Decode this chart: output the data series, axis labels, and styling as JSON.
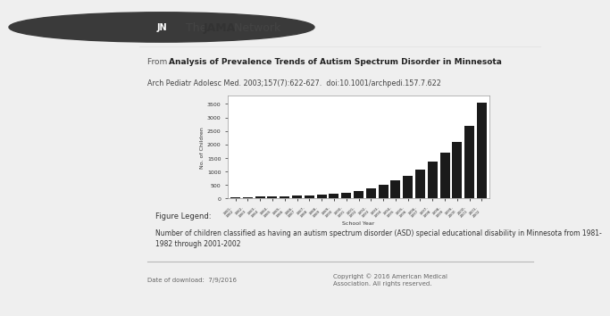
{
  "title_article_from": "From  ",
  "title_article_bold": "Analysis of Prevalence Trends of Autism Spectrum Disorder in Minnesota",
  "subtitle": "Arch Pediatr Adolesc Med. 2003;157(7):622-627.  doi:10.1001/archpedi.157.7.622",
  "ylabel": "No. of Children",
  "xlabel": "School Year",
  "bar_color": "#1a1a1a",
  "figure_legend_header": "Figure Legend:",
  "legend_text": "Number of children classified as having an autism spectrum disorder (ASD) special educational disability in Minnesota from 1981-\n1982 through 2001-2002",
  "footer_left": "Date of download:  7/9/2016",
  "footer_right": "Copyright © 2016 American Medical\nAssociation. All rights reserved.",
  "categories": [
    "1981-\n1982",
    "1982-\n1983",
    "1983-\n1984",
    "1984-\n1985",
    "1985-\n1986",
    "1986-\n1987",
    "1987-\n1988",
    "1988-\n1989",
    "1989-\n1990",
    "1990-\n1991",
    "1991-\n1992",
    "1992-\n1993",
    "1993-\n1994",
    "1994-\n1995",
    "1995-\n1996",
    "1996-\n1997",
    "1997-\n1998",
    "1998-\n1999",
    "1999-\n2000",
    "2000-\n2001",
    "2001-\n2002"
  ],
  "values": [
    50,
    55,
    62,
    72,
    82,
    97,
    112,
    135,
    168,
    215,
    275,
    375,
    505,
    665,
    825,
    1055,
    1355,
    1705,
    2105,
    2700,
    3550
  ],
  "ylim": [
    0,
    3800
  ],
  "yticks": [
    0,
    500,
    1000,
    1500,
    2000,
    2500,
    3000,
    3500
  ],
  "header_bg": "#e8e8e8",
  "page_bg": "#f0f0f0",
  "jama_circle_color": "#3a3a3a",
  "header_line_color": "#b0b0b0",
  "footer_line_color": "#b0b0b0"
}
